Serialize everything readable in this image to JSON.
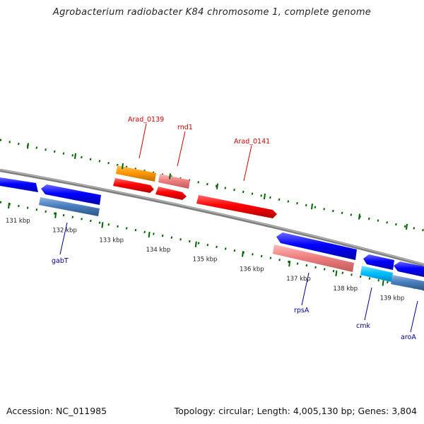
{
  "title": "Agrobacterium radiobacter K84 chromosome 1, complete genome",
  "footer": {
    "accession": "Accession: NC_011985",
    "summary": "Topology: circular; Length: 4,005,130 bp; Genes: 3,804"
  },
  "scale": {
    "ticks": [
      {
        "kbp": 131,
        "label": "131 kbp"
      },
      {
        "kbp": 132,
        "label": "132 kbp"
      },
      {
        "kbp": 133,
        "label": "133 kbp"
      },
      {
        "kbp": 134,
        "label": "134 kbp"
      },
      {
        "kbp": 135,
        "label": "135 kbp"
      },
      {
        "kbp": 136,
        "label": "136 kbp"
      },
      {
        "kbp": 137,
        "label": "137 kbp"
      },
      {
        "kbp": 138,
        "label": "138 kbp"
      },
      {
        "kbp": 139,
        "label": "139 kbp"
      }
    ]
  },
  "gene_labels": [
    {
      "name": "Arad_0139",
      "strand": "plus"
    },
    {
      "name": "rnd1",
      "strand": "plus"
    },
    {
      "name": "Arad_0141",
      "strand": "plus"
    },
    {
      "name": "gabT",
      "strand": "minus"
    },
    {
      "name": "rpsA",
      "strand": "minus"
    },
    {
      "name": "cmk",
      "strand": "minus"
    },
    {
      "name": "aroA",
      "strand": "minus"
    }
  ],
  "colors": {
    "backbone": "#808080",
    "plus_strand_gene": "#ff0000",
    "plus_outer_orange": "#ff9900",
    "plus_outer_pink": "#f08080",
    "minus_strand_gene": "#0000ff",
    "minus_outer_steel": "#4a7fbf",
    "minus_outer_pink": "#f08080",
    "minus_outer_cyan": "#00bfff",
    "tick_mark": "#006400",
    "plus_label": "#cc0000",
    "minus_label": "#00008b"
  }
}
